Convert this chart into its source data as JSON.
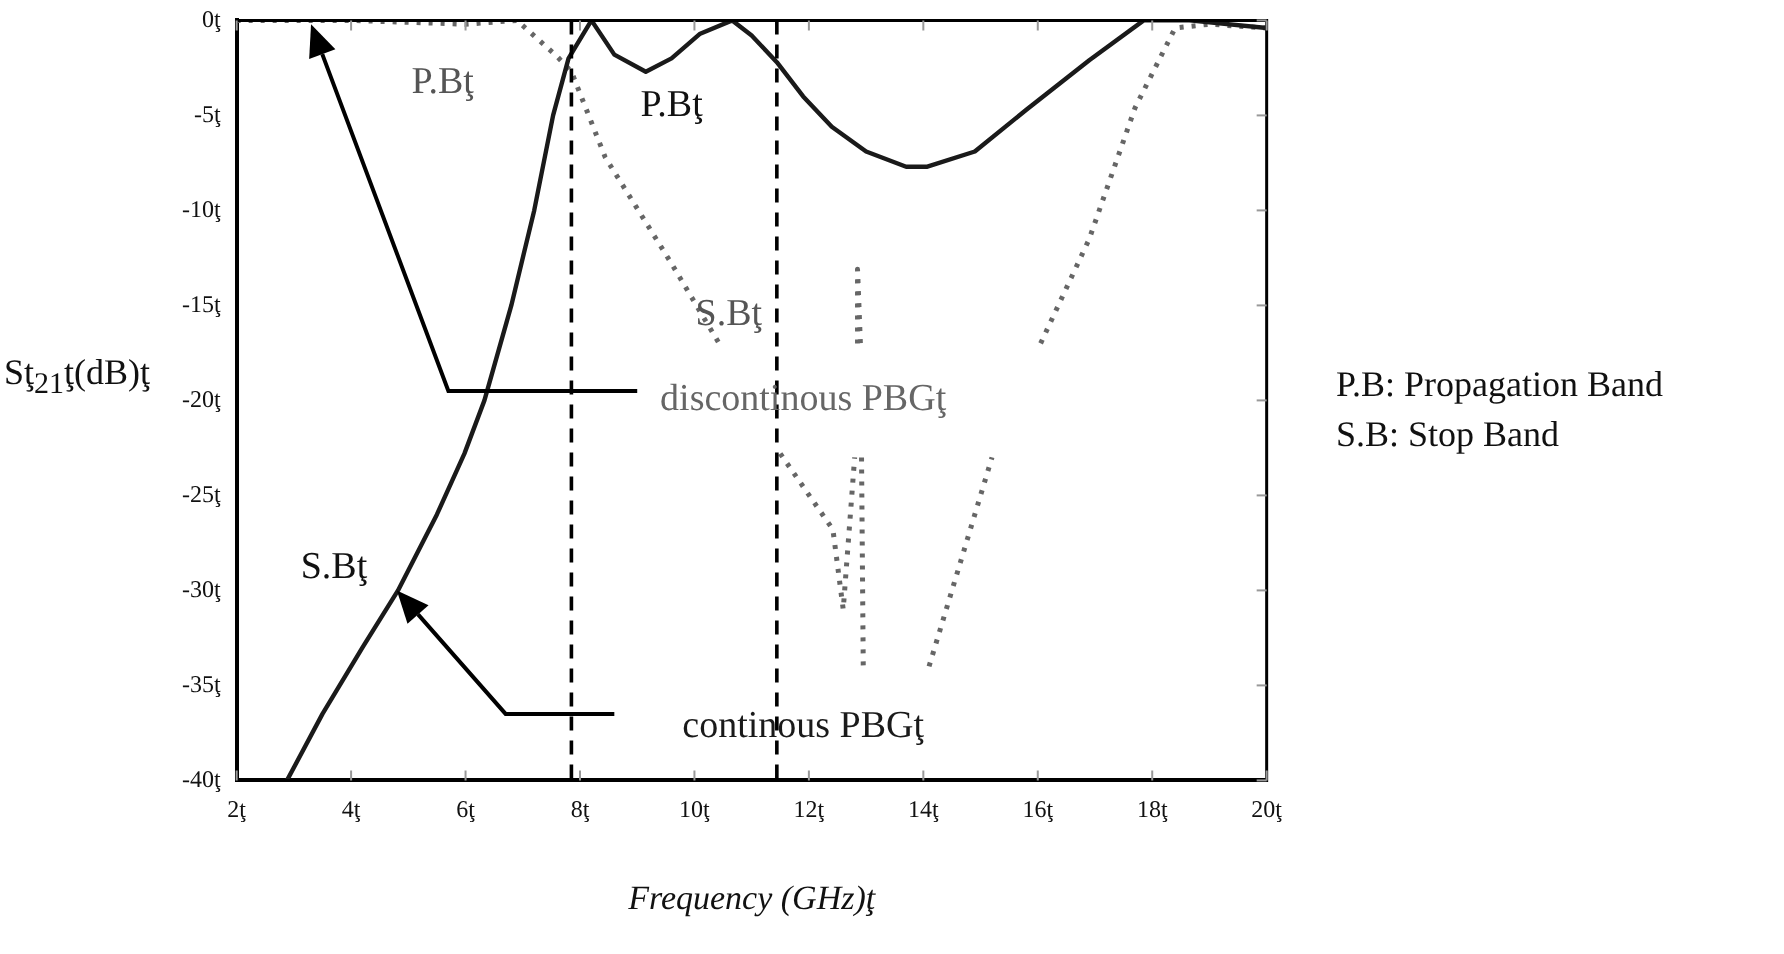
{
  "chart_data": {
    "type": "line",
    "xlabel": "Frequency (GHz)ţ",
    "ylabel": "Sţ$_{21}$ţ(dB)ţ",
    "xlim": [
      2,
      20
    ],
    "xticks": [
      {
        "value": 2,
        "label": "2ţ"
      },
      {
        "value": 4,
        "label": "4ţ"
      },
      {
        "value": 6,
        "label": "6ţ"
      },
      {
        "value": 8,
        "label": "8ţ"
      },
      {
        "value": 10,
        "label": "10ţ"
      },
      {
        "value": 12,
        "label": "12ţ"
      },
      {
        "value": 14,
        "label": "14ţ"
      },
      {
        "value": 16,
        "label": "16ţ"
      },
      {
        "value": 18,
        "label": "18ţ"
      },
      {
        "value": 20,
        "label": "20ţ"
      }
    ],
    "ylim": [
      -40,
      0
    ],
    "yticks": [
      {
        "value": -40,
        "label": "-40ţ"
      },
      {
        "value": -35,
        "label": "-35ţ"
      },
      {
        "value": -30,
        "label": "-30ţ"
      },
      {
        "value": -25,
        "label": "-25ţ"
      },
      {
        "value": -20,
        "label": "-20ţ"
      },
      {
        "value": -15,
        "label": "-15ţ"
      },
      {
        "value": -10,
        "label": "-10ţ"
      },
      {
        "value": -5,
        "label": "-5ţ"
      },
      {
        "value": 0,
        "label": "0ţ"
      }
    ],
    "grid": false,
    "legend": false,
    "marker": "none",
    "series": [
      {
        "name": "continous PBGţ",
        "color": "#1a1a1a",
        "line_style": "solid",
        "x": [
          2.88,
          3.5,
          4.2,
          4.82,
          5.5,
          5.98,
          6.33,
          6.8,
          7.2,
          7.53,
          7.8,
          8.2,
          8.6,
          9.15,
          9.6,
          10.1,
          10.66,
          11.0,
          11.44,
          11.9,
          12.4,
          13.0,
          13.7,
          14.07,
          14.9,
          15.8,
          16.9,
          17.85,
          18.65,
          20
        ],
        "values": [
          -40,
          -36.5,
          -33,
          -30,
          -26,
          -22.8,
          -20,
          -15,
          -10,
          -5,
          -2,
          0,
          -1.8,
          -2.7,
          -2,
          -0.7,
          0,
          -0.8,
          -2.2,
          -4,
          -5.6,
          -6.9,
          -7.7,
          -7.7,
          -6.9,
          -4.7,
          -2.1,
          0,
          0,
          -0.4
        ]
      },
      {
        "name": "discontinous PBGţ",
        "color": "#666666",
        "line_style": "dotted",
        "x": [
          2,
          3,
          4,
          5,
          6,
          6.9,
          7.6,
          7.85,
          8.44,
          9.6,
          10.45,
          11,
          11.5,
          12.42,
          12.6,
          12.8,
          12.82,
          12.85,
          12.85,
          12.9,
          12.91,
          12.92,
          12.95,
          13.5,
          14.1,
          15.2,
          15.6,
          16.05,
          16.9,
          17.7,
          18.4,
          19,
          20
        ],
        "values": [
          0,
          0,
          0,
          -0.1,
          -0.2,
          0,
          -1.9,
          -2.7,
          -7.2,
          -12.8,
          -17.1,
          null,
          -22.8,
          -26.8,
          -31,
          -23,
          null,
          -17,
          -13.1,
          -17,
          null,
          -23,
          -34,
          null,
          -34,
          -23,
          null,
          -17,
          -11.5,
          -4.6,
          -0.4,
          -0.2,
          -0.4
        ]
      }
    ],
    "ref_lines": [
      {
        "axis": "x",
        "value": 7.85,
        "label": null,
        "color": "#000000",
        "line_style": "dashed"
      },
      {
        "axis": "x",
        "value": 11.44,
        "label": null,
        "color": "#000000",
        "line_style": "dashed"
      }
    ],
    "annotations": [
      "P.Bţ",
      "P.Bţ",
      "S.Bţ",
      "S.Bţ",
      "P.B: Propagation Band",
      "S.B: Stop Band"
    ]
  }
}
